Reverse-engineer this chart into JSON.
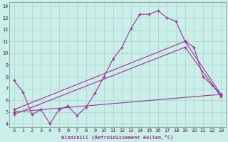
{
  "xlabel": "Windchill (Refroidissement éolien,°C)",
  "bg_color": "#cceee8",
  "grid_color": "#aad8d2",
  "line_color": "#993399",
  "xlim": [
    -0.5,
    23.5
  ],
  "ylim": [
    3.7,
    14.3
  ],
  "xticks": [
    0,
    1,
    2,
    3,
    4,
    5,
    6,
    7,
    8,
    9,
    10,
    11,
    12,
    13,
    14,
    15,
    16,
    17,
    18,
    19,
    20,
    21,
    22,
    23
  ],
  "yticks": [
    4,
    5,
    6,
    7,
    8,
    9,
    10,
    11,
    12,
    13,
    14
  ],
  "series1_x": [
    0,
    1,
    2,
    3,
    4,
    5,
    6,
    7,
    8,
    9,
    10,
    11,
    12,
    13,
    14,
    15,
    16,
    17,
    18,
    19,
    20,
    21,
    22,
    23
  ],
  "series1_y": [
    7.7,
    6.7,
    4.8,
    5.2,
    4.0,
    5.2,
    5.5,
    4.7,
    5.4,
    6.6,
    8.0,
    9.5,
    10.5,
    12.1,
    13.3,
    13.3,
    13.6,
    13.0,
    12.7,
    11.0,
    10.5,
    8.0,
    7.3,
    6.5
  ],
  "series2_x": [
    0,
    23
  ],
  "series2_y": [
    5.0,
    6.5
  ],
  "series3_x": [
    0,
    19,
    23
  ],
  "series3_y": [
    5.2,
    11.0,
    6.5
  ],
  "series4_x": [
    0,
    19,
    23
  ],
  "series4_y": [
    4.8,
    10.5,
    6.3
  ]
}
